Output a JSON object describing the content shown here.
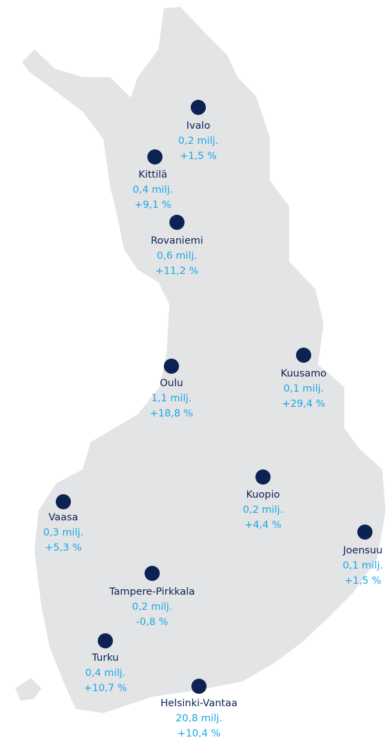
{
  "airports": [
    {
      "name": "Ivalo",
      "passengers": "0,2 milj.",
      "change": "+1,5 %"
    },
    {
      "name": "Kittilä",
      "passengers": "0,4 milj.",
      "change": "+9,1 %"
    },
    {
      "name": "Rovaniemi",
      "passengers": "0,6 milj.",
      "change": "+11,2 %"
    },
    {
      "name": "Oulu",
      "passengers": "1,1 milj.",
      "change": "+18,8 %"
    },
    {
      "name": "Kuusamo",
      "passengers": "0,1 milj.",
      "change": "+29,4 %"
    },
    {
      "name": "Kuopio",
      "passengers": "0,2 milj.",
      "change": "+4,4 %"
    },
    {
      "name": "Vaasa",
      "passengers": "0,3 milj.",
      "change": "+5,3 %"
    },
    {
      "name": "Joensuu",
      "passengers": "0,1 milj.",
      "change": "+1,5 %"
    },
    {
      "name": "Tampere-Pirkkala",
      "passengers": "0,2 milj.",
      "change": "-0,8 %"
    },
    {
      "name": "Turku",
      "passengers": "0,4 milj.",
      "change": "+10,7 %"
    },
    {
      "name": "Helsinki-Vantaa",
      "passengers": "20,8  milj.",
      "change": "+10,4 %"
    }
  ]
}
